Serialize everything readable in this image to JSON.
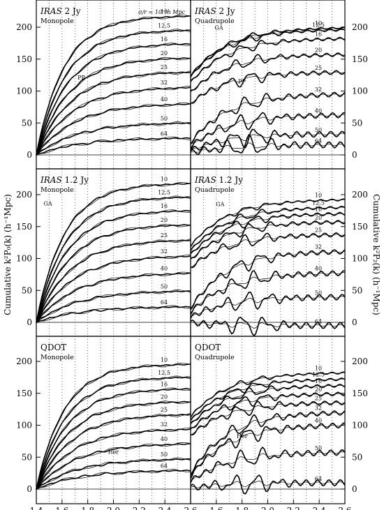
{
  "chart_data": {
    "type": "line",
    "ylabel_left": "Cumulative k²P₀(k) (h⁻¹Mpc)",
    "ylabel_right": "Cumulative k²P₂(k) (h⁻¹Mpc)",
    "xticks": [
      "1.4",
      "1.6",
      "1.8",
      "2.0",
      "2.2",
      "2.4",
      "2.6"
    ],
    "yticks": [
      "0",
      "50",
      "100",
      "150",
      "200"
    ],
    "ylim": [
      -15,
      240
    ],
    "xlim": [
      1.4,
      2.6
    ],
    "legend_note": "σ/r = 10⁻¹h Mpc",
    "sigma_labels": [
      "10",
      "12.5",
      "16",
      "20",
      "25",
      "32",
      "40",
      "50",
      "64"
    ],
    "panels": [
      {
        "title_italic": "IRAS",
        "title_rest": " 2 Jy",
        "subtitle": "Monopole",
        "annotations": [
          {
            "text": "PP",
            "x": 1.75,
            "y": 118
          }
        ],
        "final_values": [
          218,
          196,
          175,
          153,
          131,
          107,
          81,
          51,
          27
        ]
      },
      {
        "title_italic": "IRAS",
        "title_rest": " 2 Jy",
        "subtitle": "Quadrupole",
        "annotations": [
          {
            "text": "GA",
            "x": 1.62,
            "y": 196
          },
          {
            "text": "PP",
            "x": 1.8,
            "y": 112
          }
        ],
        "final_values": [
          200,
          197,
          183,
          158,
          130,
          96,
          63,
          33,
          16
        ]
      },
      {
        "title_italic": "IRAS",
        "title_rest": " 1.2 Jy",
        "subtitle": "Monopole",
        "annotations": [
          {
            "text": "GA",
            "x": 1.49,
            "y": 183
          }
        ],
        "final_values": [
          218,
          197,
          176,
          154,
          130,
          105,
          78,
          50,
          25
        ]
      },
      {
        "title_italic": "IRAS",
        "title_rest": " 1.2 Jy",
        "subtitle": "Quadrupole",
        "annotations": [
          {
            "text": "GA",
            "x": 1.63,
            "y": 182
          }
        ],
        "final_values": [
          193,
          181,
          171,
          158,
          138,
          112,
          78,
          40,
          -5
        ]
      },
      {
        "title_italic": "",
        "title_rest": "QDOT",
        "subtitle": "Monopole",
        "annotations": [
          {
            "text": "Her",
            "x": 2.0,
            "y": 55
          }
        ],
        "final_values": [
          196,
          176,
          158,
          138,
          118,
          95,
          72,
          48,
          30
        ]
      },
      {
        "title_italic": "",
        "title_rest": "QDOT",
        "subtitle": "Quadrupole",
        "annotations": [
          {
            "text": "Her",
            "x": 1.8,
            "y": 80
          }
        ],
        "final_values": [
          183,
          173,
          163,
          150,
          136,
          121,
          101,
          58,
          10
        ]
      }
    ]
  }
}
